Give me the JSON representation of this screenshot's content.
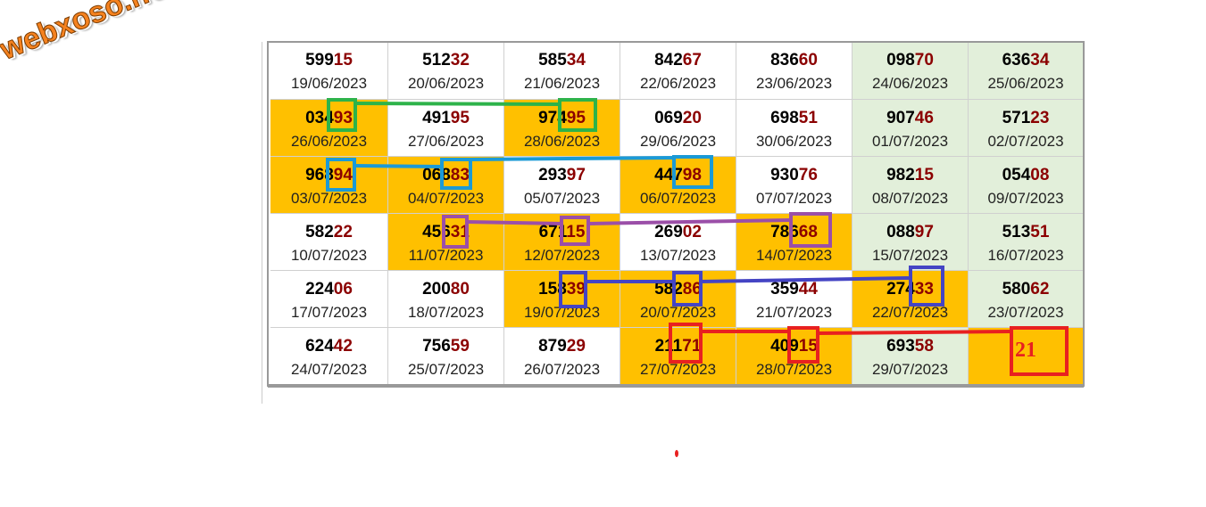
{
  "watermark": "webxoso.net",
  "table": {
    "rows": [
      [
        {
          "number": "59915",
          "date": "19/06/2023",
          "bg": "#ffffff"
        },
        {
          "number": "51232",
          "date": "20/06/2023",
          "bg": "#ffffff"
        },
        {
          "number": "58534",
          "date": "21/06/2023",
          "bg": "#ffffff"
        },
        {
          "number": "84267",
          "date": "22/06/2023",
          "bg": "#ffffff"
        },
        {
          "number": "83660",
          "date": "23/06/2023",
          "bg": "#ffffff"
        },
        {
          "number": "09870",
          "date": "24/06/2023",
          "bg": "#e2efda"
        },
        {
          "number": "63634",
          "date": "25/06/2023",
          "bg": "#e2efda"
        }
      ],
      [
        {
          "number": "03493",
          "date": "26/06/2023",
          "bg": "#ffc000"
        },
        {
          "number": "49195",
          "date": "27/06/2023",
          "bg": "#ffffff"
        },
        {
          "number": "97495",
          "date": "28/06/2023",
          "bg": "#ffc000"
        },
        {
          "number": "06920",
          "date": "29/06/2023",
          "bg": "#ffffff"
        },
        {
          "number": "69851",
          "date": "30/06/2023",
          "bg": "#ffffff"
        },
        {
          "number": "90746",
          "date": "01/07/2023",
          "bg": "#e2efda"
        },
        {
          "number": "57123",
          "date": "02/07/2023",
          "bg": "#e2efda"
        }
      ],
      [
        {
          "number": "96894",
          "date": "03/07/2023",
          "bg": "#ffc000"
        },
        {
          "number": "06883",
          "date": "04/07/2023",
          "bg": "#ffc000"
        },
        {
          "number": "29397",
          "date": "05/07/2023",
          "bg": "#ffffff"
        },
        {
          "number": "44798",
          "date": "06/07/2023",
          "bg": "#ffc000"
        },
        {
          "number": "93076",
          "date": "07/07/2023",
          "bg": "#ffffff"
        },
        {
          "number": "98215",
          "date": "08/07/2023",
          "bg": "#e2efda"
        },
        {
          "number": "05408",
          "date": "09/07/2023",
          "bg": "#e2efda"
        }
      ],
      [
        {
          "number": "58222",
          "date": "10/07/2023",
          "bg": "#ffffff"
        },
        {
          "number": "45631",
          "date": "11/07/2023",
          "bg": "#ffc000"
        },
        {
          "number": "67115",
          "date": "12/07/2023",
          "bg": "#ffc000"
        },
        {
          "number": "26902",
          "date": "13/07/2023",
          "bg": "#ffffff"
        },
        {
          "number": "78668",
          "date": "14/07/2023",
          "bg": "#ffc000"
        },
        {
          "number": "08897",
          "date": "15/07/2023",
          "bg": "#e2efda"
        },
        {
          "number": "51351",
          "date": "16/07/2023",
          "bg": "#e2efda"
        }
      ],
      [
        {
          "number": "22406",
          "date": "17/07/2023",
          "bg": "#ffffff"
        },
        {
          "number": "20080",
          "date": "18/07/2023",
          "bg": "#ffffff"
        },
        {
          "number": "15839",
          "date": "19/07/2023",
          "bg": "#ffc000"
        },
        {
          "number": "58286",
          "date": "20/07/2023",
          "bg": "#ffc000"
        },
        {
          "number": "35944",
          "date": "21/07/2023",
          "bg": "#ffffff"
        },
        {
          "number": "27433",
          "date": "22/07/2023",
          "bg": "#ffc000"
        },
        {
          "number": "58062",
          "date": "23/07/2023",
          "bg": "#e2efda"
        }
      ],
      [
        {
          "number": "62442",
          "date": "24/07/2023",
          "bg": "#ffffff"
        },
        {
          "number": "75659",
          "date": "25/07/2023",
          "bg": "#ffffff"
        },
        {
          "number": "87929",
          "date": "26/07/2023",
          "bg": "#ffffff"
        },
        {
          "number": "21171",
          "date": "27/07/2023",
          "bg": "#ffc000"
        },
        {
          "number": "40915",
          "date": "28/07/2023",
          "bg": "#ffc000"
        },
        {
          "number": "69358",
          "date": "29/07/2023",
          "bg": "#e2efda"
        },
        {
          "number": "21",
          "bg": "#ffc000"
        }
      ]
    ]
  }
}
